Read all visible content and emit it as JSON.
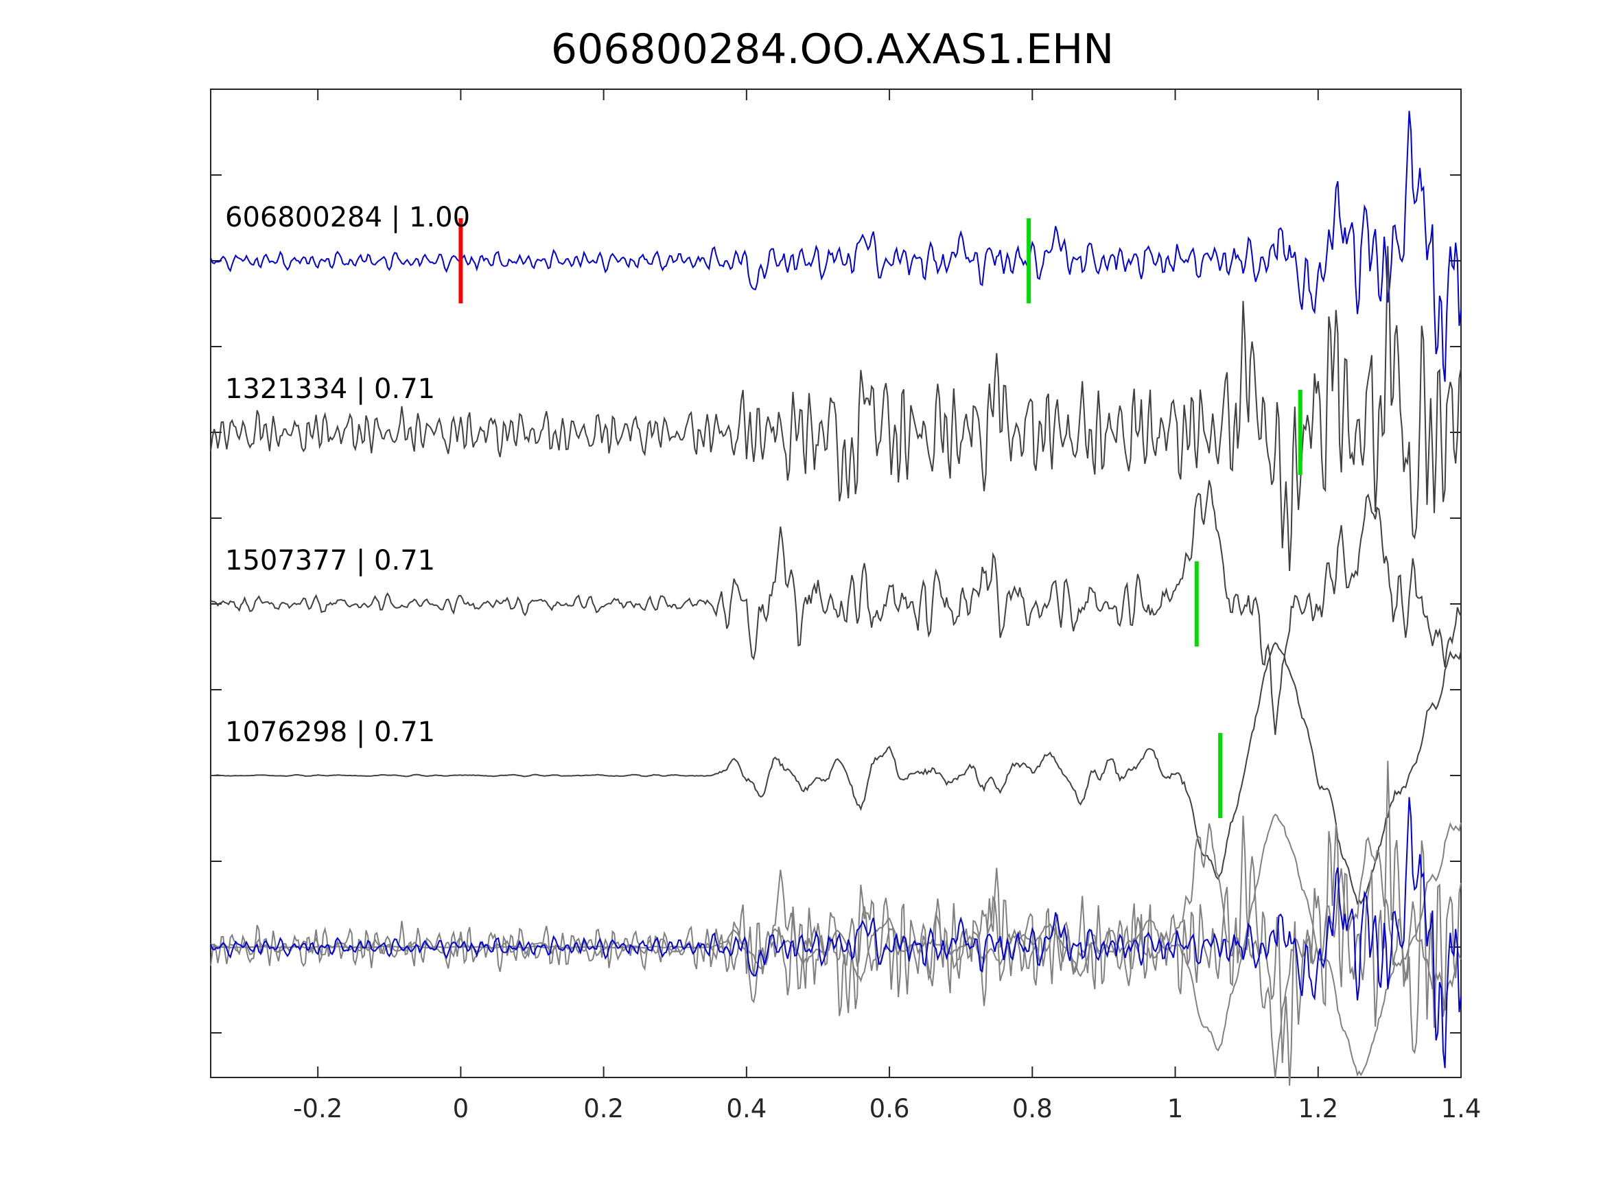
{
  "chart_data": {
    "type": "line",
    "title": "606800284.OO.AXAS1.EHN",
    "xlabel": "",
    "ylabel": "",
    "xlim": [
      -0.35,
      1.4
    ],
    "xticks": [
      -0.2,
      0,
      0.2,
      0.4,
      0.6,
      0.8,
      1,
      1.2,
      1.4
    ],
    "xtick_labels": [
      "-0.2",
      "0",
      "0.2",
      "0.4",
      "0.6",
      "0.8",
      "1",
      "1.2",
      "1.4"
    ],
    "grid": false,
    "colors": {
      "primary_trace": "#0000dd",
      "neighbor_trace": "#404040",
      "overlay_gray": "#808080",
      "reference_pick": "#ff0000",
      "arrival_pick": "#00dd00",
      "axes": "#262626"
    },
    "traces": [
      {
        "label": "606800284 | 1.00",
        "color": "#0000dd",
        "picks": [
          {
            "t": 0.0,
            "color": "#ff0000"
          },
          {
            "t": 0.795,
            "color": "#00dd00"
          }
        ],
        "envelope": [
          [
            -0.35,
            0.2
          ],
          [
            0.35,
            0.25
          ],
          [
            0.4,
            0.4
          ],
          [
            0.6,
            0.5
          ],
          [
            1.05,
            0.45
          ],
          [
            1.15,
            0.7
          ],
          [
            1.2,
            1.0
          ],
          [
            1.3,
            1.6
          ],
          [
            1.4,
            2.2
          ]
        ],
        "events": [
          {
            "t": 0.412,
            "a": -0.8,
            "w": 0.008
          },
          {
            "t": 0.565,
            "a": 0.7,
            "w": 0.01
          },
          {
            "t": 0.7,
            "a": 0.5,
            "w": 0.01
          },
          {
            "t": 0.836,
            "a": 0.6,
            "w": 0.012
          },
          {
            "t": 1.15,
            "a": 0.6,
            "w": 0.01
          },
          {
            "t": 1.188,
            "a": -1.2,
            "w": 0.013
          },
          {
            "t": 1.23,
            "a": 1.3,
            "w": 0.013
          },
          {
            "t": 1.262,
            "a": 0.5,
            "w": 0.01
          },
          {
            "t": 1.335,
            "a": 3.3,
            "w": 0.013
          },
          {
            "t": 1.37,
            "a": -2.3,
            "w": 0.01
          }
        ],
        "seed": 11,
        "freq": 38
      },
      {
        "label": "1321334 | 0.71",
        "color": "#404040",
        "picks": [
          {
            "t": 1.175,
            "color": "#00dd00"
          }
        ],
        "envelope": [
          [
            -0.35,
            0.45
          ],
          [
            0.35,
            0.5
          ],
          [
            0.4,
            0.9
          ],
          [
            0.6,
            1.3
          ],
          [
            0.8,
            1.1
          ],
          [
            1.0,
            1.0
          ],
          [
            1.1,
            1.6
          ],
          [
            1.2,
            2.0
          ],
          [
            1.4,
            2.5
          ]
        ],
        "events": [
          {
            "t": 0.57,
            "a": 1.4,
            "w": 0.012
          },
          {
            "t": 0.545,
            "a": -1.4,
            "w": 0.012
          },
          {
            "t": 0.75,
            "a": 1.3,
            "w": 0.01
          },
          {
            "t": 1.1,
            "a": 2.2,
            "w": 0.012
          },
          {
            "t": 1.155,
            "a": -2.8,
            "w": 0.012
          },
          {
            "t": 1.22,
            "a": 2.3,
            "w": 0.012
          },
          {
            "t": 1.3,
            "a": 2.7,
            "w": 0.012
          },
          {
            "t": 1.33,
            "a": -1.5,
            "w": 0.01
          }
        ],
        "seed": 23,
        "freq": 42
      },
      {
        "label": "1507377 | 0.71",
        "color": "#404040",
        "picks": [
          {
            "t": 1.03,
            "color": "#00dd00"
          }
        ],
        "envelope": [
          [
            -0.35,
            0.2
          ],
          [
            0.35,
            0.22
          ],
          [
            0.4,
            0.9
          ],
          [
            0.6,
            0.8
          ],
          [
            0.8,
            0.8
          ],
          [
            1.0,
            0.6
          ],
          [
            1.1,
            0.8
          ],
          [
            1.4,
            1.0
          ]
        ],
        "events": [
          {
            "t": 0.45,
            "a": 1.6,
            "w": 0.01
          },
          {
            "t": 0.41,
            "a": -1.0,
            "w": 0.008
          },
          {
            "t": 0.74,
            "a": 1.2,
            "w": 0.01
          },
          {
            "t": 1.04,
            "a": 3.3,
            "w": 0.025
          },
          {
            "t": 1.14,
            "a": -2.6,
            "w": 0.02
          },
          {
            "t": 1.23,
            "a": 1.0,
            "w": 0.02
          },
          {
            "t": 1.275,
            "a": 2.8,
            "w": 0.022
          },
          {
            "t": 1.38,
            "a": -1.5,
            "w": 0.02
          }
        ],
        "seed": 37,
        "freq": 30
      },
      {
        "label": "1076298 | 0.71",
        "color": "#404040",
        "picks": [
          {
            "t": 1.063,
            "color": "#00dd00"
          }
        ],
        "envelope": [
          [
            -0.35,
            0.02
          ],
          [
            0.35,
            0.03
          ],
          [
            0.38,
            0.2
          ],
          [
            0.5,
            0.3
          ],
          [
            1.0,
            0.3
          ],
          [
            1.4,
            0.4
          ]
        ],
        "events": [
          {
            "t": 0.385,
            "a": 0.5,
            "w": 0.012
          },
          {
            "t": 0.415,
            "a": -0.6,
            "w": 0.012
          },
          {
            "t": 0.445,
            "a": 0.45,
            "w": 0.014
          },
          {
            "t": 0.48,
            "a": -0.45,
            "w": 0.014
          },
          {
            "t": 0.525,
            "a": 0.35,
            "w": 0.012
          },
          {
            "t": 0.555,
            "a": -0.8,
            "w": 0.012
          },
          {
            "t": 0.595,
            "a": 0.85,
            "w": 0.013
          },
          {
            "t": 0.75,
            "a": -0.4,
            "w": 0.015
          },
          {
            "t": 0.785,
            "a": 0.45,
            "w": 0.015
          },
          {
            "t": 0.82,
            "a": 0.55,
            "w": 0.013
          },
          {
            "t": 0.87,
            "a": -0.6,
            "w": 0.013
          },
          {
            "t": 0.905,
            "a": 0.4,
            "w": 0.012
          },
          {
            "t": 0.965,
            "a": 0.9,
            "w": 0.015
          },
          {
            "t": 1.055,
            "a": -2.9,
            "w": 0.03
          },
          {
            "t": 1.145,
            "a": 3.9,
            "w": 0.035
          },
          {
            "t": 1.25,
            "a": -1.8,
            "w": 0.03
          },
          {
            "t": 1.27,
            "a": -2.0,
            "w": 0.04
          },
          {
            "t": 1.4,
            "a": 3.6,
            "w": 0.05
          }
        ],
        "seed": 53,
        "freq": 18
      }
    ],
    "overlay": {
      "label": "",
      "description": "all traces overlaid"
    }
  }
}
